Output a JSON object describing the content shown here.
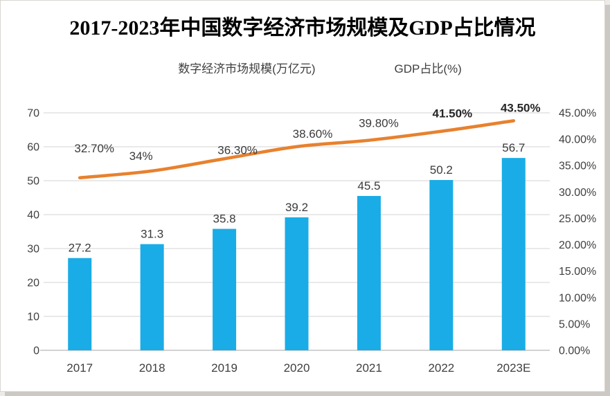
{
  "page": {
    "title": "2017-2023年中国数字经济市场规模及GDP占比情况"
  },
  "legend": {
    "items": [
      {
        "label": "数字经济市场规模(万亿元)",
        "type": "bar",
        "color": "#1aace6"
      },
      {
        "label": "GDP占比(%)",
        "type": "line",
        "color": "#e8812e"
      }
    ]
  },
  "chart_data": {
    "type": "bar+line",
    "title": "2017-2023年中国数字经济市场规模及GDP占比情况",
    "categories": [
      "2017",
      "2018",
      "2019",
      "2020",
      "2021",
      "2022",
      "2023E"
    ],
    "series": [
      {
        "name": "数字经济市场规模(万亿元)",
        "type": "bar",
        "axis": "left",
        "color": "#1aace6",
        "values": [
          27.2,
          31.3,
          35.8,
          39.2,
          45.5,
          50.2,
          56.7
        ],
        "labels": [
          "27.2",
          "31.3",
          "35.8",
          "39.2",
          "45.5",
          "50.2",
          "56.7"
        ]
      },
      {
        "name": "GDP占比(%)",
        "type": "line",
        "axis": "right",
        "color": "#e8812e",
        "values": [
          32.7,
          34,
          36.3,
          38.6,
          39.8,
          41.5,
          43.5
        ],
        "labels": [
          "32.70%",
          "34%",
          "36.30%",
          "38.60%",
          "39.80%",
          "41.50%",
          "43.50%"
        ],
        "label_bold": [
          false,
          false,
          false,
          false,
          false,
          true,
          true
        ]
      }
    ],
    "left_axis": {
      "min": 0,
      "max": 70,
      "step": 10,
      "ticks": [
        "0",
        "10",
        "20",
        "30",
        "40",
        "50",
        "60",
        "70"
      ]
    },
    "right_axis": {
      "min": 0,
      "max": 45,
      "step": 5,
      "ticks": [
        "0.00%",
        "5.00%",
        "10.00%",
        "15.00%",
        "20.00%",
        "25.00%",
        "30.00%",
        "35.00%",
        "40.00%",
        "45.00%"
      ]
    },
    "grid": true,
    "legend_position": "top",
    "colors": {
      "bar": "#1aace6",
      "line": "#e8812e",
      "gridline": "#dcdcdc",
      "baseline": "#c3c3c3",
      "axis_text": "#3f3f3f",
      "label_text": "#3a3a3a"
    }
  }
}
